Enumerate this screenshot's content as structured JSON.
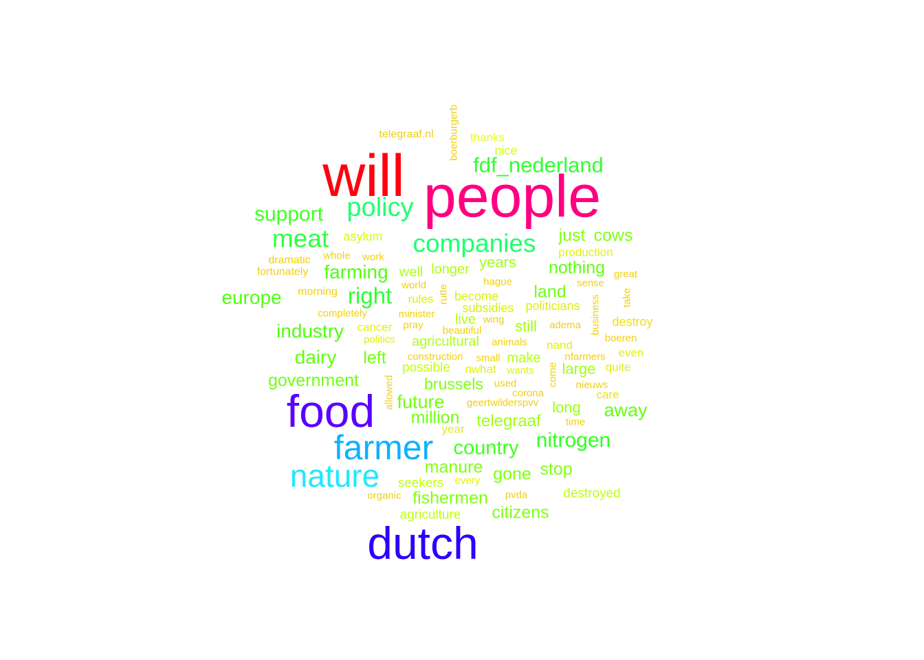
{
  "wordcloud": {
    "words": [
      {
        "text": "people",
        "color": "#ff0080"
      },
      {
        "text": "will",
        "color": "#ff0010"
      },
      {
        "text": "food",
        "color": "#5a00ff"
      },
      {
        "text": "dutch",
        "color": "#2a00ff"
      },
      {
        "text": "farmer",
        "color": "#10b0ff"
      },
      {
        "text": "nature",
        "color": "#20e8ff"
      },
      {
        "text": "companies",
        "color": "#20ff70"
      },
      {
        "text": "policy",
        "color": "#20ff70"
      },
      {
        "text": "meat",
        "color": "#30ff40"
      },
      {
        "text": "fdf_nederland",
        "color": "#30ff30"
      },
      {
        "text": "support",
        "color": "#40ff20"
      },
      {
        "text": "right",
        "color": "#30ff30"
      },
      {
        "text": "nitrogen",
        "color": "#30ff20"
      },
      {
        "text": "europe",
        "color": "#50ff10"
      },
      {
        "text": "industry",
        "color": "#50ff10"
      },
      {
        "text": "farming",
        "color": "#50ff10"
      },
      {
        "text": "country",
        "color": "#40ff20"
      },
      {
        "text": "dairy",
        "color": "#60ff10"
      },
      {
        "text": "government",
        "color": "#70ff10"
      },
      {
        "text": "nothing",
        "color": "#60ff10"
      },
      {
        "text": "cows",
        "color": "#80ff10"
      },
      {
        "text": "just",
        "color": "#80ff10"
      },
      {
        "text": "land",
        "color": "#70ff10"
      },
      {
        "text": "away",
        "color": "#60ff10"
      },
      {
        "text": "left",
        "color": "#70ff10"
      },
      {
        "text": "future",
        "color": "#70ff10"
      },
      {
        "text": "million",
        "color": "#70ff10"
      },
      {
        "text": "brussels",
        "color": "#80ff10"
      },
      {
        "text": "manure",
        "color": "#80ff10"
      },
      {
        "text": "gone",
        "color": "#80ff10"
      },
      {
        "text": "stop",
        "color": "#80ff10"
      },
      {
        "text": "fishermen",
        "color": "#80ff10"
      },
      {
        "text": "citizens",
        "color": "#80ff10"
      },
      {
        "text": "telegraaf",
        "color": "#a0ff10"
      },
      {
        "text": "years",
        "color": "#a0ff10"
      },
      {
        "text": "long",
        "color": "#a0ff10"
      },
      {
        "text": "large",
        "color": "#a0ff10"
      },
      {
        "text": "still",
        "color": "#a0ff10"
      },
      {
        "text": "make",
        "color": "#b0ff10"
      },
      {
        "text": "agricultural",
        "color": "#b0ff10"
      },
      {
        "text": "well",
        "color": "#b0ff10"
      },
      {
        "text": "longer",
        "color": "#b0ff10"
      },
      {
        "text": "live",
        "color": "#b0ff10"
      },
      {
        "text": "possible",
        "color": "#c0ff10"
      },
      {
        "text": "seekers",
        "color": "#c0ff10"
      },
      {
        "text": "agriculture",
        "color": "#c0ff10"
      },
      {
        "text": "destroyed",
        "color": "#c0ff10"
      },
      {
        "text": "asylum",
        "color": "#d0ff10"
      },
      {
        "text": "nice",
        "color": "#d0ff10"
      },
      {
        "text": "thanks",
        "color": "#e8ff10"
      },
      {
        "text": "rules",
        "color": "#d8f010"
      },
      {
        "text": "become",
        "color": "#d8f010"
      },
      {
        "text": "subsidies",
        "color": "#d8f010"
      },
      {
        "text": "politicians",
        "color": "#d8f010"
      },
      {
        "text": "cancer",
        "color": "#e0f010"
      },
      {
        "text": "nand",
        "color": "#e0f010"
      },
      {
        "text": "production",
        "color": "#e0f010"
      },
      {
        "text": "wants",
        "color": "#e0f010"
      },
      {
        "text": "nwhat",
        "color": "#e0f010"
      },
      {
        "text": "even",
        "color": "#e0f010"
      },
      {
        "text": "quite",
        "color": "#e0f010"
      },
      {
        "text": "year",
        "color": "#e0f010"
      },
      {
        "text": "every",
        "color": "#e0f010"
      },
      {
        "text": "politics",
        "color": "#e0f010"
      },
      {
        "text": "destroy",
        "color": "#f0e010"
      },
      {
        "text": "care",
        "color": "#f0e010"
      },
      {
        "text": "work",
        "color": "#f0d010"
      },
      {
        "text": "whole",
        "color": "#f0d010"
      },
      {
        "text": "dramatic",
        "color": "#f0d010"
      },
      {
        "text": "fortunately",
        "color": "#f0d010"
      },
      {
        "text": "morning",
        "color": "#f0d010"
      },
      {
        "text": "completely",
        "color": "#f0d010"
      },
      {
        "text": "world",
        "color": "#f0d010"
      },
      {
        "text": "minister",
        "color": "#f0d010"
      },
      {
        "text": "pray",
        "color": "#f0d010"
      },
      {
        "text": "beautiful",
        "color": "#f0d010"
      },
      {
        "text": "wing",
        "color": "#f0d010"
      },
      {
        "text": "hague",
        "color": "#f0d010"
      },
      {
        "text": "sense",
        "color": "#f0d010"
      },
      {
        "text": "great",
        "color": "#f0d010"
      },
      {
        "text": "adema",
        "color": "#f0d010"
      },
      {
        "text": "animals",
        "color": "#f0d010"
      },
      {
        "text": "boeren",
        "color": "#f0d010"
      },
      {
        "text": "construction",
        "color": "#f0d010"
      },
      {
        "text": "small",
        "color": "#f0d010"
      },
      {
        "text": "nfarmers",
        "color": "#f0d010"
      },
      {
        "text": "used",
        "color": "#f0d010"
      },
      {
        "text": "corona",
        "color": "#f0d010"
      },
      {
        "text": "nieuws",
        "color": "#f0d010"
      },
      {
        "text": "geertwilderspvv",
        "color": "#f0d010"
      },
      {
        "text": "time",
        "color": "#f0d010"
      },
      {
        "text": "organic",
        "color": "#f0d010"
      },
      {
        "text": "pvda",
        "color": "#f0d010"
      },
      {
        "text": "telegraaf.nl",
        "color": "#f0d010"
      },
      {
        "text": "boerburgerb",
        "color": "#f0d010"
      },
      {
        "text": "rutte",
        "color": "#f0d010"
      },
      {
        "text": "take",
        "color": "#f0d010"
      },
      {
        "text": "business",
        "color": "#f0d010"
      },
      {
        "text": "allowed",
        "color": "#f0d010"
      },
      {
        "text": "come",
        "color": "#f0d010"
      }
    ]
  }
}
